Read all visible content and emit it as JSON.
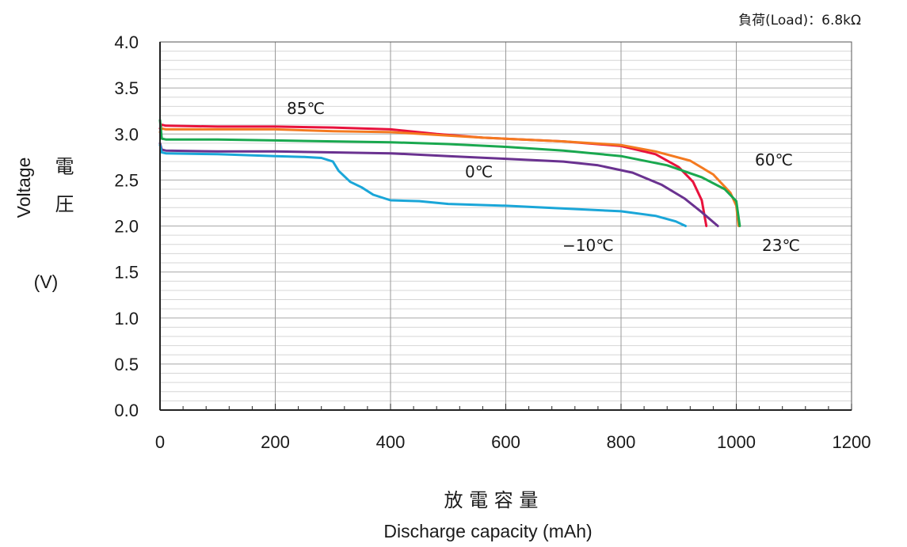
{
  "chart_data": {
    "type": "line",
    "annotation": "負荷(Load)：6.8kΩ",
    "xlabel_jp": "放 電 容 量",
    "xlabel": "Discharge capacity (mAh)",
    "ylabel": "Voltage",
    "ylabel_jp": "電 圧",
    "yunit": "(V)",
    "xlim": [
      0,
      1200
    ],
    "ylim": [
      0,
      4.0
    ],
    "xticks": [
      "0",
      "200",
      "400",
      "600",
      "800",
      "1000",
      "1200"
    ],
    "yticks": [
      "0.0",
      "0.5",
      "1.0",
      "1.5",
      "2.0",
      "2.5",
      "3.0",
      "3.5",
      "4.0"
    ],
    "grid": true,
    "series": [
      {
        "name": "85℃",
        "color": "#e8123c",
        "points": [
          [
            0,
            3.06
          ],
          [
            3,
            3.1
          ],
          [
            10,
            3.09
          ],
          [
            100,
            3.08
          ],
          [
            200,
            3.08
          ],
          [
            300,
            3.07
          ],
          [
            400,
            3.05
          ],
          [
            480,
            3.0
          ],
          [
            560,
            2.96
          ],
          [
            700,
            2.92
          ],
          [
            800,
            2.87
          ],
          [
            860,
            2.78
          ],
          [
            900,
            2.64
          ],
          [
            925,
            2.48
          ],
          [
            940,
            2.28
          ],
          [
            948,
            2.0
          ]
        ]
      },
      {
        "name": "60℃",
        "color": "#f47a20",
        "points": [
          [
            0,
            3.02
          ],
          [
            3,
            3.06
          ],
          [
            10,
            3.05
          ],
          [
            100,
            3.05
          ],
          [
            200,
            3.05
          ],
          [
            300,
            3.03
          ],
          [
            400,
            3.02
          ],
          [
            480,
            2.99
          ],
          [
            560,
            2.96
          ],
          [
            700,
            2.92
          ],
          [
            800,
            2.88
          ],
          [
            860,
            2.81
          ],
          [
            920,
            2.71
          ],
          [
            960,
            2.56
          ],
          [
            990,
            2.36
          ],
          [
            1000,
            2.22
          ],
          [
            1004,
            2.0
          ]
        ]
      },
      {
        "name": "23℃",
        "color": "#1aa84f",
        "points": [
          [
            0,
            3.15
          ],
          [
            3,
            2.95
          ],
          [
            10,
            2.94
          ],
          [
            100,
            2.94
          ],
          [
            200,
            2.93
          ],
          [
            300,
            2.92
          ],
          [
            400,
            2.91
          ],
          [
            500,
            2.89
          ],
          [
            600,
            2.86
          ],
          [
            700,
            2.82
          ],
          [
            800,
            2.76
          ],
          [
            880,
            2.66
          ],
          [
            940,
            2.53
          ],
          [
            980,
            2.4
          ],
          [
            1000,
            2.27
          ],
          [
            1006,
            2.0
          ]
        ]
      },
      {
        "name": "0℃",
        "color": "#6a3290",
        "points": [
          [
            0,
            2.9
          ],
          [
            3,
            2.83
          ],
          [
            10,
            2.82
          ],
          [
            100,
            2.81
          ],
          [
            200,
            2.81
          ],
          [
            300,
            2.8
          ],
          [
            400,
            2.79
          ],
          [
            500,
            2.76
          ],
          [
            600,
            2.73
          ],
          [
            700,
            2.7
          ],
          [
            760,
            2.66
          ],
          [
            820,
            2.58
          ],
          [
            870,
            2.45
          ],
          [
            910,
            2.3
          ],
          [
            940,
            2.15
          ],
          [
            968,
            2.0
          ]
        ]
      },
      {
        "name": "−10℃",
        "color": "#1aa6d8",
        "points": [
          [
            0,
            2.88
          ],
          [
            3,
            2.8
          ],
          [
            10,
            2.79
          ],
          [
            100,
            2.78
          ],
          [
            200,
            2.76
          ],
          [
            250,
            2.75
          ],
          [
            280,
            2.74
          ],
          [
            300,
            2.7
          ],
          [
            310,
            2.6
          ],
          [
            330,
            2.48
          ],
          [
            350,
            2.42
          ],
          [
            370,
            2.34
          ],
          [
            400,
            2.28
          ],
          [
            450,
            2.27
          ],
          [
            500,
            2.24
          ],
          [
            600,
            2.22
          ],
          [
            700,
            2.19
          ],
          [
            800,
            2.16
          ],
          [
            860,
            2.11
          ],
          [
            895,
            2.05
          ],
          [
            912,
            2.0
          ]
        ]
      }
    ]
  }
}
